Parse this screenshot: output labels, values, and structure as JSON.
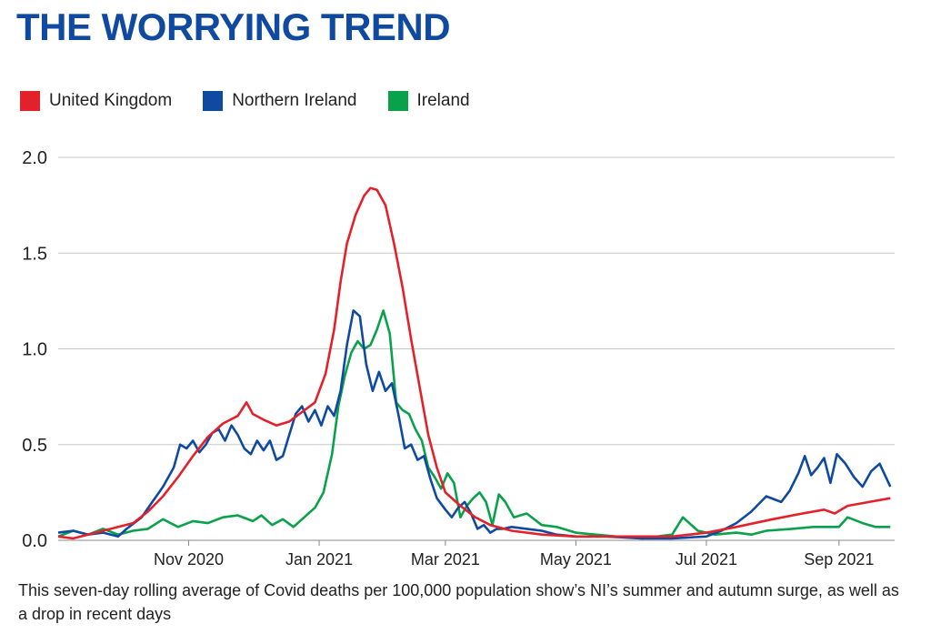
{
  "title": "THE WORRYING TREND",
  "caption": "This seven-day rolling average of Covid deaths per 100,000 population show’s NI’s summer and autumn surge, as well as a drop in recent days",
  "colors": {
    "title": "#0f4aa0",
    "grid": "#c8c8c8"
  },
  "chart_data": {
    "type": "line",
    "title": "",
    "xlabel": "",
    "ylabel": "",
    "ylim": [
      0,
      2.0
    ],
    "xlim": [
      "2020-09-01",
      "2021-09-27"
    ],
    "grid": true,
    "legend_position": "top-left",
    "y_ticks": [
      "0.0",
      "0.5",
      "1.0",
      "1.5",
      "2.0"
    ],
    "x_ticks": [
      {
        "date": "2020-11-01",
        "label": "Nov 2020"
      },
      {
        "date": "2021-01-01",
        "label": "Jan 2021"
      },
      {
        "date": "2021-03-01",
        "label": "Mar 2021"
      },
      {
        "date": "2021-05-01",
        "label": "May 2021"
      },
      {
        "date": "2021-07-01",
        "label": "Jul 2021"
      },
      {
        "date": "2021-09-01",
        "label": "Sep 2021"
      }
    ],
    "series": [
      {
        "name": "United Kingdom",
        "color": "#e3212a",
        "points": [
          [
            "2020-09-01",
            0.02
          ],
          [
            "2020-09-08",
            0.01
          ],
          [
            "2020-09-15",
            0.03
          ],
          [
            "2020-09-22",
            0.05
          ],
          [
            "2020-09-29",
            0.07
          ],
          [
            "2020-10-06",
            0.09
          ],
          [
            "2020-10-13",
            0.15
          ],
          [
            "2020-10-20",
            0.23
          ],
          [
            "2020-10-27",
            0.33
          ],
          [
            "2020-11-03",
            0.44
          ],
          [
            "2020-11-10",
            0.54
          ],
          [
            "2020-11-17",
            0.61
          ],
          [
            "2020-11-24",
            0.65
          ],
          [
            "2020-11-28",
            0.72
          ],
          [
            "2020-12-01",
            0.66
          ],
          [
            "2020-12-06",
            0.63
          ],
          [
            "2020-12-12",
            0.6
          ],
          [
            "2020-12-18",
            0.62
          ],
          [
            "2020-12-24",
            0.67
          ],
          [
            "2020-12-30",
            0.72
          ],
          [
            "2021-01-04",
            0.87
          ],
          [
            "2021-01-08",
            1.1
          ],
          [
            "2021-01-11",
            1.35
          ],
          [
            "2021-01-14",
            1.55
          ],
          [
            "2021-01-18",
            1.7
          ],
          [
            "2021-01-22",
            1.8
          ],
          [
            "2021-01-25",
            1.84
          ],
          [
            "2021-01-28",
            1.83
          ],
          [
            "2021-02-01",
            1.75
          ],
          [
            "2021-02-05",
            1.55
          ],
          [
            "2021-02-09",
            1.32
          ],
          [
            "2021-02-13",
            1.05
          ],
          [
            "2021-02-17",
            0.8
          ],
          [
            "2021-02-21",
            0.55
          ],
          [
            "2021-02-25",
            0.38
          ],
          [
            "2021-03-01",
            0.25
          ],
          [
            "2021-03-08",
            0.18
          ],
          [
            "2021-03-15",
            0.12
          ],
          [
            "2021-03-22",
            0.08
          ],
          [
            "2021-04-01",
            0.05
          ],
          [
            "2021-04-15",
            0.03
          ],
          [
            "2021-05-01",
            0.02
          ],
          [
            "2021-05-15",
            0.02
          ],
          [
            "2021-06-01",
            0.02
          ],
          [
            "2021-06-15",
            0.02
          ],
          [
            "2021-07-01",
            0.04
          ],
          [
            "2021-07-15",
            0.07
          ],
          [
            "2021-08-01",
            0.11
          ],
          [
            "2021-08-15",
            0.14
          ],
          [
            "2021-08-25",
            0.16
          ],
          [
            "2021-08-30",
            0.14
          ],
          [
            "2021-09-05",
            0.18
          ],
          [
            "2021-09-15",
            0.2
          ],
          [
            "2021-09-25",
            0.22
          ]
        ]
      },
      {
        "name": "Northern Ireland",
        "color": "#0f4aa0",
        "points": [
          [
            "2020-09-01",
            0.04
          ],
          [
            "2020-09-08",
            0.05
          ],
          [
            "2020-09-15",
            0.03
          ],
          [
            "2020-09-22",
            0.04
          ],
          [
            "2020-09-29",
            0.02
          ],
          [
            "2020-10-03",
            0.06
          ],
          [
            "2020-10-10",
            0.12
          ],
          [
            "2020-10-15",
            0.2
          ],
          [
            "2020-10-20",
            0.28
          ],
          [
            "2020-10-25",
            0.38
          ],
          [
            "2020-10-28",
            0.5
          ],
          [
            "2020-10-31",
            0.48
          ],
          [
            "2020-11-03",
            0.52
          ],
          [
            "2020-11-06",
            0.46
          ],
          [
            "2020-11-09",
            0.5
          ],
          [
            "2020-11-12",
            0.56
          ],
          [
            "2020-11-15",
            0.58
          ],
          [
            "2020-11-18",
            0.52
          ],
          [
            "2020-11-21",
            0.6
          ],
          [
            "2020-11-24",
            0.55
          ],
          [
            "2020-11-27",
            0.48
          ],
          [
            "2020-11-30",
            0.45
          ],
          [
            "2020-12-03",
            0.52
          ],
          [
            "2020-12-06",
            0.47
          ],
          [
            "2020-12-09",
            0.52
          ],
          [
            "2020-12-12",
            0.42
          ],
          [
            "2020-12-15",
            0.44
          ],
          [
            "2020-12-18",
            0.55
          ],
          [
            "2020-12-21",
            0.66
          ],
          [
            "2020-12-24",
            0.7
          ],
          [
            "2020-12-27",
            0.62
          ],
          [
            "2020-12-30",
            0.68
          ],
          [
            "2021-01-02",
            0.6
          ],
          [
            "2021-01-05",
            0.7
          ],
          [
            "2021-01-08",
            0.65
          ],
          [
            "2021-01-11",
            0.78
          ],
          [
            "2021-01-14",
            1.02
          ],
          [
            "2021-01-17",
            1.2
          ],
          [
            "2021-01-20",
            1.17
          ],
          [
            "2021-01-23",
            0.92
          ],
          [
            "2021-01-26",
            0.78
          ],
          [
            "2021-01-29",
            0.88
          ],
          [
            "2021-02-01",
            0.78
          ],
          [
            "2021-02-04",
            0.82
          ],
          [
            "2021-02-07",
            0.66
          ],
          [
            "2021-02-10",
            0.48
          ],
          [
            "2021-02-13",
            0.5
          ],
          [
            "2021-02-16",
            0.42
          ],
          [
            "2021-02-19",
            0.44
          ],
          [
            "2021-02-22",
            0.32
          ],
          [
            "2021-02-25",
            0.22
          ],
          [
            "2021-03-01",
            0.16
          ],
          [
            "2021-03-04",
            0.12
          ],
          [
            "2021-03-07",
            0.17
          ],
          [
            "2021-03-10",
            0.2
          ],
          [
            "2021-03-13",
            0.14
          ],
          [
            "2021-03-16",
            0.06
          ],
          [
            "2021-03-19",
            0.08
          ],
          [
            "2021-03-22",
            0.04
          ],
          [
            "2021-03-25",
            0.06
          ],
          [
            "2021-03-28",
            0.06
          ],
          [
            "2021-04-01",
            0.07
          ],
          [
            "2021-04-08",
            0.06
          ],
          [
            "2021-04-15",
            0.05
          ],
          [
            "2021-04-22",
            0.03
          ],
          [
            "2021-05-01",
            0.02
          ],
          [
            "2021-05-15",
            0.02
          ],
          [
            "2021-06-01",
            0.01
          ],
          [
            "2021-06-15",
            0.01
          ],
          [
            "2021-07-01",
            0.02
          ],
          [
            "2021-07-08",
            0.05
          ],
          [
            "2021-07-15",
            0.09
          ],
          [
            "2021-07-22",
            0.15
          ],
          [
            "2021-07-29",
            0.23
          ],
          [
            "2021-08-05",
            0.2
          ],
          [
            "2021-08-09",
            0.26
          ],
          [
            "2021-08-13",
            0.35
          ],
          [
            "2021-08-16",
            0.44
          ],
          [
            "2021-08-19",
            0.34
          ],
          [
            "2021-08-22",
            0.38
          ],
          [
            "2021-08-25",
            0.43
          ],
          [
            "2021-08-28",
            0.3
          ],
          [
            "2021-08-31",
            0.45
          ],
          [
            "2021-09-04",
            0.4
          ],
          [
            "2021-09-08",
            0.33
          ],
          [
            "2021-09-12",
            0.28
          ],
          [
            "2021-09-16",
            0.36
          ],
          [
            "2021-09-20",
            0.4
          ],
          [
            "2021-09-25",
            0.28
          ]
        ]
      },
      {
        "name": "Ireland",
        "color": "#0aa14b",
        "points": [
          [
            "2020-09-01",
            0.02
          ],
          [
            "2020-09-08",
            0.05
          ],
          [
            "2020-09-15",
            0.03
          ],
          [
            "2020-09-22",
            0.06
          ],
          [
            "2020-09-29",
            0.03
          ],
          [
            "2020-10-06",
            0.05
          ],
          [
            "2020-10-13",
            0.06
          ],
          [
            "2020-10-20",
            0.11
          ],
          [
            "2020-10-27",
            0.07
          ],
          [
            "2020-11-03",
            0.1
          ],
          [
            "2020-11-10",
            0.09
          ],
          [
            "2020-11-17",
            0.12
          ],
          [
            "2020-11-24",
            0.13
          ],
          [
            "2020-12-01",
            0.1
          ],
          [
            "2020-12-05",
            0.13
          ],
          [
            "2020-12-10",
            0.08
          ],
          [
            "2020-12-15",
            0.11
          ],
          [
            "2020-12-20",
            0.07
          ],
          [
            "2020-12-25",
            0.12
          ],
          [
            "2020-12-30",
            0.17
          ],
          [
            "2021-01-03",
            0.25
          ],
          [
            "2021-01-07",
            0.45
          ],
          [
            "2021-01-10",
            0.7
          ],
          [
            "2021-01-13",
            0.86
          ],
          [
            "2021-01-16",
            0.98
          ],
          [
            "2021-01-19",
            1.04
          ],
          [
            "2021-01-22",
            1.0
          ],
          [
            "2021-01-25",
            1.02
          ],
          [
            "2021-01-28",
            1.1
          ],
          [
            "2021-01-31",
            1.2
          ],
          [
            "2021-02-03",
            1.08
          ],
          [
            "2021-02-06",
            0.72
          ],
          [
            "2021-02-09",
            0.68
          ],
          [
            "2021-02-12",
            0.66
          ],
          [
            "2021-02-15",
            0.58
          ],
          [
            "2021-02-18",
            0.52
          ],
          [
            "2021-02-21",
            0.38
          ],
          [
            "2021-02-24",
            0.33
          ],
          [
            "2021-02-27",
            0.27
          ],
          [
            "2021-03-02",
            0.35
          ],
          [
            "2021-03-05",
            0.3
          ],
          [
            "2021-03-08",
            0.12
          ],
          [
            "2021-03-11",
            0.18
          ],
          [
            "2021-03-14",
            0.22
          ],
          [
            "2021-03-17",
            0.25
          ],
          [
            "2021-03-20",
            0.2
          ],
          [
            "2021-03-23",
            0.08
          ],
          [
            "2021-03-26",
            0.24
          ],
          [
            "2021-03-29",
            0.2
          ],
          [
            "2021-04-02",
            0.12
          ],
          [
            "2021-04-08",
            0.14
          ],
          [
            "2021-04-15",
            0.08
          ],
          [
            "2021-04-22",
            0.07
          ],
          [
            "2021-05-01",
            0.04
          ],
          [
            "2021-05-10",
            0.03
          ],
          [
            "2021-05-20",
            0.02
          ],
          [
            "2021-06-01",
            0.01
          ],
          [
            "2021-06-15",
            0.03
          ],
          [
            "2021-06-20",
            0.12
          ],
          [
            "2021-06-27",
            0.05
          ],
          [
            "2021-07-05",
            0.03
          ],
          [
            "2021-07-15",
            0.04
          ],
          [
            "2021-07-22",
            0.03
          ],
          [
            "2021-07-29",
            0.05
          ],
          [
            "2021-08-10",
            0.06
          ],
          [
            "2021-08-20",
            0.07
          ],
          [
            "2021-09-01",
            0.07
          ],
          [
            "2021-09-05",
            0.12
          ],
          [
            "2021-09-12",
            0.09
          ],
          [
            "2021-09-18",
            0.07
          ],
          [
            "2021-09-25",
            0.07
          ]
        ]
      }
    ]
  }
}
